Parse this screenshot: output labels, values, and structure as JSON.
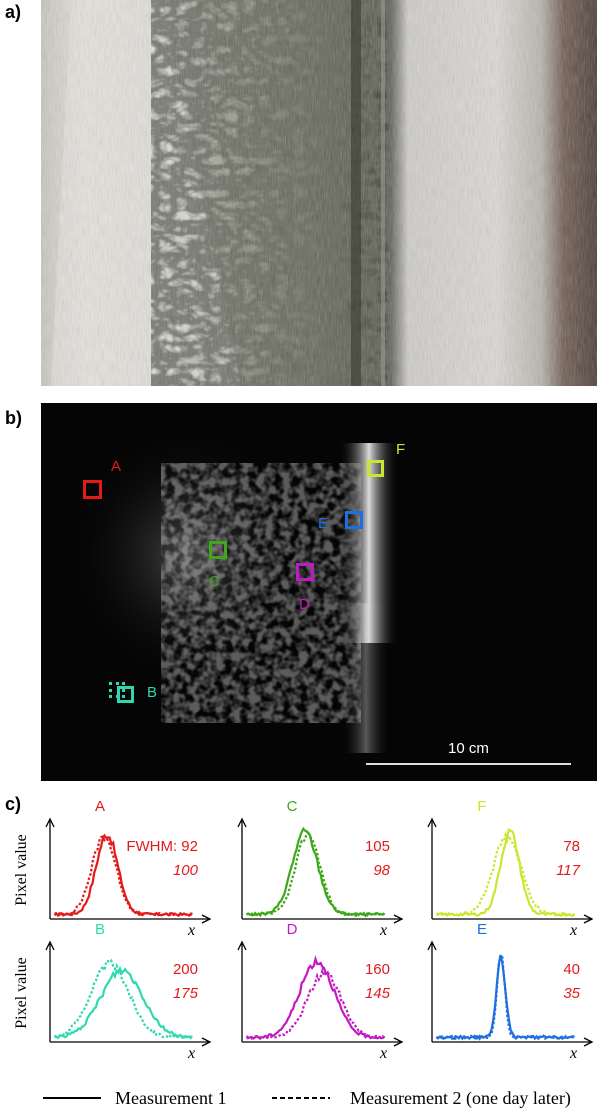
{
  "panels": {
    "a": "a)",
    "b": "b)",
    "c": "c)"
  },
  "thermo": {
    "rois": [
      {
        "id": "A",
        "color": "#e31a1c"
      },
      {
        "id": "B",
        "color": "#2ed9b0"
      },
      {
        "id": "C",
        "color": "#3ea81a"
      },
      {
        "id": "D",
        "color": "#c21ac2"
      },
      {
        "id": "E",
        "color": "#1f6fe0"
      },
      {
        "id": "F",
        "color": "#c8e82e"
      }
    ],
    "scale_label": "10 cm"
  },
  "chart_data": [
    {
      "type": "line",
      "label": "A",
      "color": "#e31a1c",
      "ylabel": "Pixel value",
      "xlabel": "x",
      "annotation_fwhm": "FWHM: 92",
      "fwhm_m1": 92,
      "fwhm_m2": 100,
      "series": [
        {
          "name": "Measurement 1",
          "center": 0.38,
          "width": 0.17,
          "peak": 0.87
        },
        {
          "name": "Measurement 2 (one day later)",
          "center": 0.36,
          "width": 0.19,
          "peak": 0.85
        }
      ]
    },
    {
      "type": "line",
      "label": "C",
      "color": "#3ea81a",
      "ylabel": "",
      "xlabel": "x",
      "fwhm_m1": 105,
      "fwhm_m2": 98,
      "series": [
        {
          "name": "Measurement 1",
          "center": 0.42,
          "width": 0.2,
          "peak": 0.9
        },
        {
          "name": "Measurement 2 (one day later)",
          "center": 0.44,
          "width": 0.19,
          "peak": 0.88
        }
      ]
    },
    {
      "type": "line",
      "label": "F",
      "color": "#c8e82e",
      "ylabel": "",
      "xlabel": "x",
      "fwhm_m1": 78,
      "fwhm_m2": 117,
      "series": [
        {
          "name": "Measurement 1",
          "center": 0.52,
          "width": 0.15,
          "peak": 0.9
        },
        {
          "name": "Measurement 2 (one day later)",
          "center": 0.5,
          "width": 0.22,
          "peak": 0.84
        }
      ]
    },
    {
      "type": "line",
      "label": "B",
      "color": "#2ed9b0",
      "ylabel": "Pixel value",
      "xlabel": "x",
      "fwhm_m1": 200,
      "fwhm_m2": 175,
      "series": [
        {
          "name": "Measurement 1",
          "center": 0.48,
          "width": 0.33,
          "peak": 0.73
        },
        {
          "name": "Measurement 2 (one day later)",
          "center": 0.4,
          "width": 0.3,
          "peak": 0.8
        }
      ]
    },
    {
      "type": "line",
      "label": "D",
      "color": "#c21ac2",
      "ylabel": "",
      "xlabel": "x",
      "fwhm_m1": 160,
      "fwhm_m2": 145,
      "series": [
        {
          "name": "Measurement 1",
          "center": 0.5,
          "width": 0.27,
          "peak": 0.83
        },
        {
          "name": "Measurement 2 (one day later)",
          "center": 0.55,
          "width": 0.26,
          "peak": 0.7
        }
      ]
    },
    {
      "type": "line",
      "label": "E",
      "color": "#1f6fe0",
      "ylabel": "",
      "xlabel": "x",
      "fwhm_m1": 40,
      "fwhm_m2": 35,
      "series": [
        {
          "name": "Measurement 1",
          "center": 0.46,
          "width": 0.07,
          "peak": 0.87
        },
        {
          "name": "Measurement 2 (one day later)",
          "center": 0.46,
          "width": 0.06,
          "peak": 0.93
        }
      ]
    }
  ],
  "legend": {
    "m1": "Measurement 1",
    "m2": "Measurement 2 (one day later)"
  }
}
